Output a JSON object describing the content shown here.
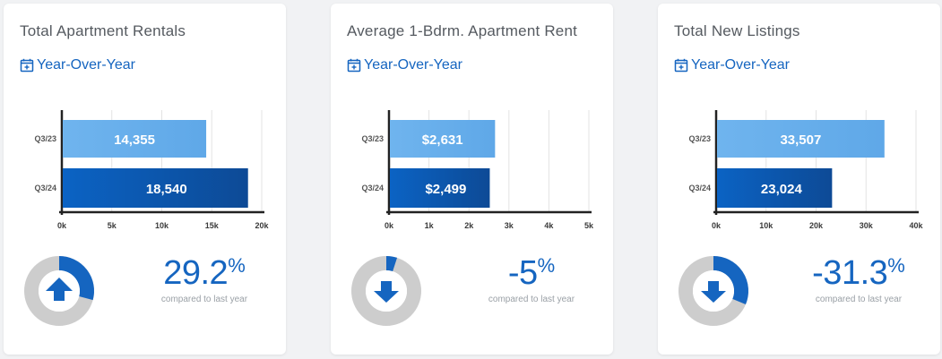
{
  "colors": {
    "accent": "#1565c0",
    "bar_light": "#5fa8e8",
    "bar_dark": "#0d4a96",
    "donut_bg": "#cdcdcd",
    "donut_fg": "#1565c0"
  },
  "yoy_icon": "calendar-plus-icon",
  "cards": [
    {
      "title": "Total Apartment Rentals",
      "yoy_label": "Year-Over-Year",
      "change_value": "29.2",
      "change_symbol": "%",
      "change_caption": "compared to last year",
      "direction": "up",
      "donut_fraction": 0.292,
      "chart_data": {
        "type": "bar",
        "orientation": "horizontal",
        "categories": [
          "Q3/23",
          "Q3/24"
        ],
        "values": [
          14355,
          18540
        ],
        "value_labels": [
          "14,355",
          "18,540"
        ],
        "xlim": [
          0,
          20000
        ],
        "x_ticks": [
          0,
          5000,
          10000,
          15000,
          20000
        ],
        "x_tick_labels": [
          "0k",
          "5k",
          "10k",
          "15k",
          "20k"
        ],
        "grid": true
      }
    },
    {
      "title": "Average 1-Bdrm. Apartment Rent",
      "yoy_label": "Year-Over-Year",
      "change_value": "-5",
      "change_symbol": "%",
      "change_caption": "compared to last year",
      "direction": "down",
      "donut_fraction": 0.05,
      "chart_data": {
        "type": "bar",
        "orientation": "horizontal",
        "categories": [
          "Q3/23",
          "Q3/24"
        ],
        "values": [
          2631,
          2499
        ],
        "value_labels": [
          "$2,631",
          "$2,499"
        ],
        "xlim": [
          0,
          5000
        ],
        "x_ticks": [
          0,
          1000,
          2000,
          3000,
          4000,
          5000
        ],
        "x_tick_labels": [
          "0k",
          "1k",
          "2k",
          "3k",
          "4k",
          "5k"
        ],
        "grid": true
      }
    },
    {
      "title": "Total New Listings",
      "yoy_label": "Year-Over-Year",
      "change_value": "-31.3",
      "change_symbol": "%",
      "change_caption": "compared to last year",
      "direction": "down",
      "donut_fraction": 0.313,
      "chart_data": {
        "type": "bar",
        "orientation": "horizontal",
        "categories": [
          "Q3/23",
          "Q3/24"
        ],
        "values": [
          33507,
          23024
        ],
        "value_labels": [
          "33,507",
          "23,024"
        ],
        "xlim": [
          0,
          40000
        ],
        "x_ticks": [
          0,
          10000,
          20000,
          30000,
          40000
        ],
        "x_tick_labels": [
          "0k",
          "10k",
          "20k",
          "30k",
          "40k"
        ],
        "grid": true
      }
    }
  ]
}
